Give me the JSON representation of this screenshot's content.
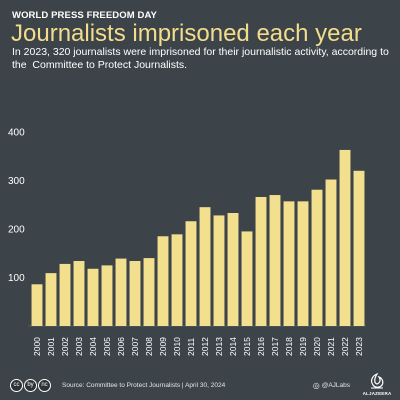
{
  "header": {
    "kicker": "WORLD PRESS FREEDOM DAY",
    "title": "Journalists imprisoned each year",
    "subtitle": "In 2023, 320 journalists were imprisoned for their journalistic activity, according to the  Committee to Protect Journalists."
  },
  "chart_data": {
    "type": "bar",
    "categories": [
      "2000",
      "2001",
      "2002",
      "2003",
      "2004",
      "2005",
      "2006",
      "2007",
      "2008",
      "2009",
      "2010",
      "2011",
      "2012",
      "2013",
      "2014",
      "2015",
      "2016",
      "2017",
      "2018",
      "2019",
      "2020",
      "2021",
      "2022",
      "2023"
    ],
    "values": [
      86,
      109,
      128,
      134,
      118,
      125,
      139,
      134,
      140,
      185,
      189,
      216,
      245,
      228,
      233,
      195,
      266,
      270,
      257,
      257,
      281,
      302,
      363,
      320
    ],
    "ylim": [
      0,
      400
    ],
    "yticks": [
      100,
      200,
      300,
      400
    ],
    "grid": false,
    "bar_color": "#f3e08f"
  },
  "footer": {
    "license_icons": [
      "cc-icon",
      "by-icon",
      "nc-icon"
    ],
    "license_marks": [
      "cc",
      "by",
      "nc"
    ],
    "source": "Source: Committee to Protect Journalists  |  April 30, 2024",
    "credit": "@AJLabs",
    "logo_text": "ALJAZEERA"
  },
  "colors": {
    "background": "#3c4449",
    "title": "#f3dd8c",
    "text": "#ffffff"
  }
}
